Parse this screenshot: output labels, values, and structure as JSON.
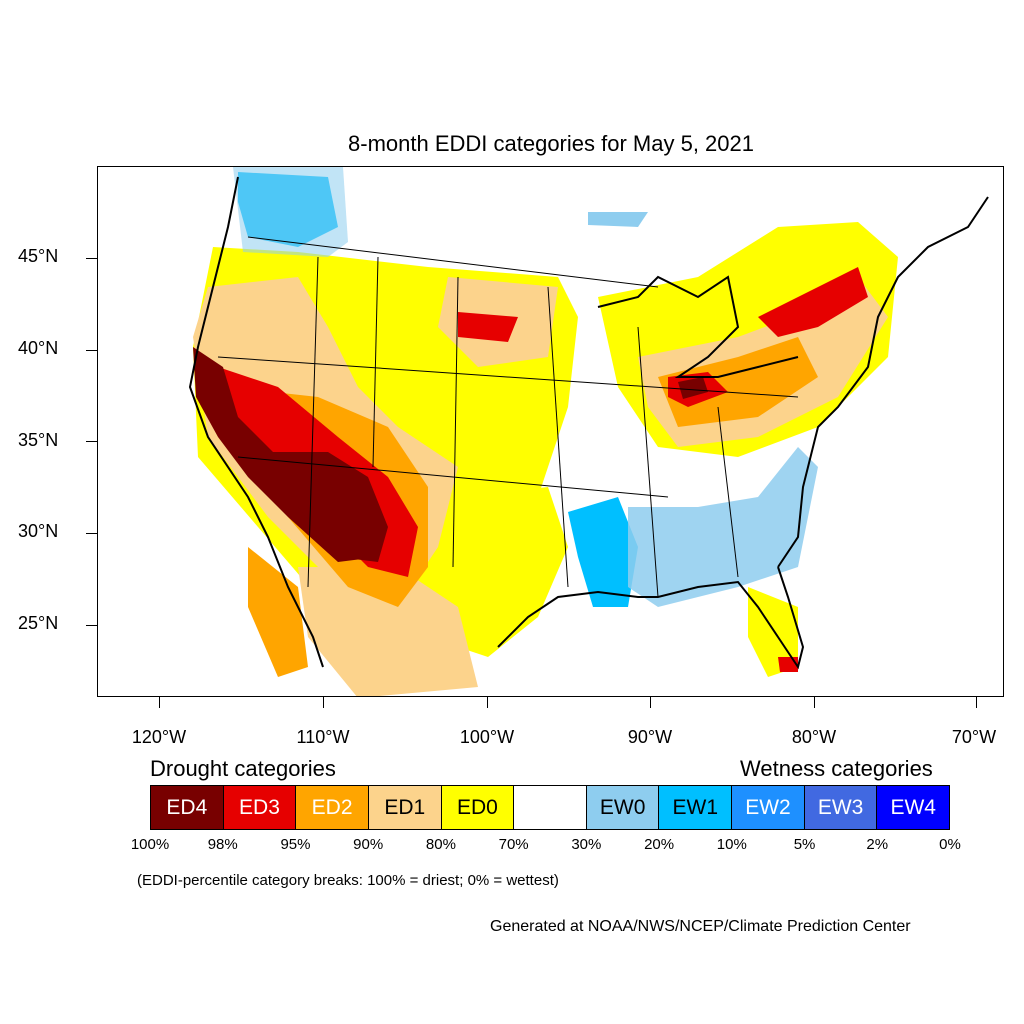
{
  "title": "8-month EDDI categories for May 5, 2021",
  "y_axis_labels": [
    "45°N",
    "40°N",
    "35°N",
    "30°N",
    "25°N"
  ],
  "x_axis_labels": [
    "120°W",
    "110°W",
    "100°W",
    "90°W",
    "80°W",
    "70°W"
  ],
  "legend": {
    "drought_heading": "Drought categories",
    "wetness_heading": "Wetness categories",
    "categories": [
      {
        "label": "ED4",
        "color": "#780000",
        "text_color": "#ffffff"
      },
      {
        "label": "ED3",
        "color": "#e60000",
        "text_color": "#ffffff"
      },
      {
        "label": "ED2",
        "color": "#ffa500",
        "text_color": "#ffffff"
      },
      {
        "label": "ED1",
        "color": "#fcd38c",
        "text_color": "#000000"
      },
      {
        "label": "ED0",
        "color": "#ffff00",
        "text_color": "#000000"
      },
      {
        "label": "",
        "color": "#ffffff",
        "text_color": "#000000"
      },
      {
        "label": "EW0",
        "color": "#8ecdef",
        "text_color": "#000000"
      },
      {
        "label": "EW1",
        "color": "#00bfff",
        "text_color": "#000000"
      },
      {
        "label": "EW2",
        "color": "#1e90ff",
        "text_color": "#ffffff"
      },
      {
        "label": "EW3",
        "color": "#4169e1",
        "text_color": "#ffffff"
      },
      {
        "label": "EW4",
        "color": "#0000ff",
        "text_color": "#ffffff"
      }
    ],
    "percentiles": [
      "100%",
      "98%",
      "95%",
      "90%",
      "80%",
      "70%",
      "30%",
      "20%",
      "10%",
      "5%",
      "2%",
      "0%"
    ]
  },
  "note": "(EDDI-percentile category breaks: 100% = driest; 0% = wettest)",
  "credit": "Generated at NOAA/NWS/NCEP/Climate Prediction Center"
}
